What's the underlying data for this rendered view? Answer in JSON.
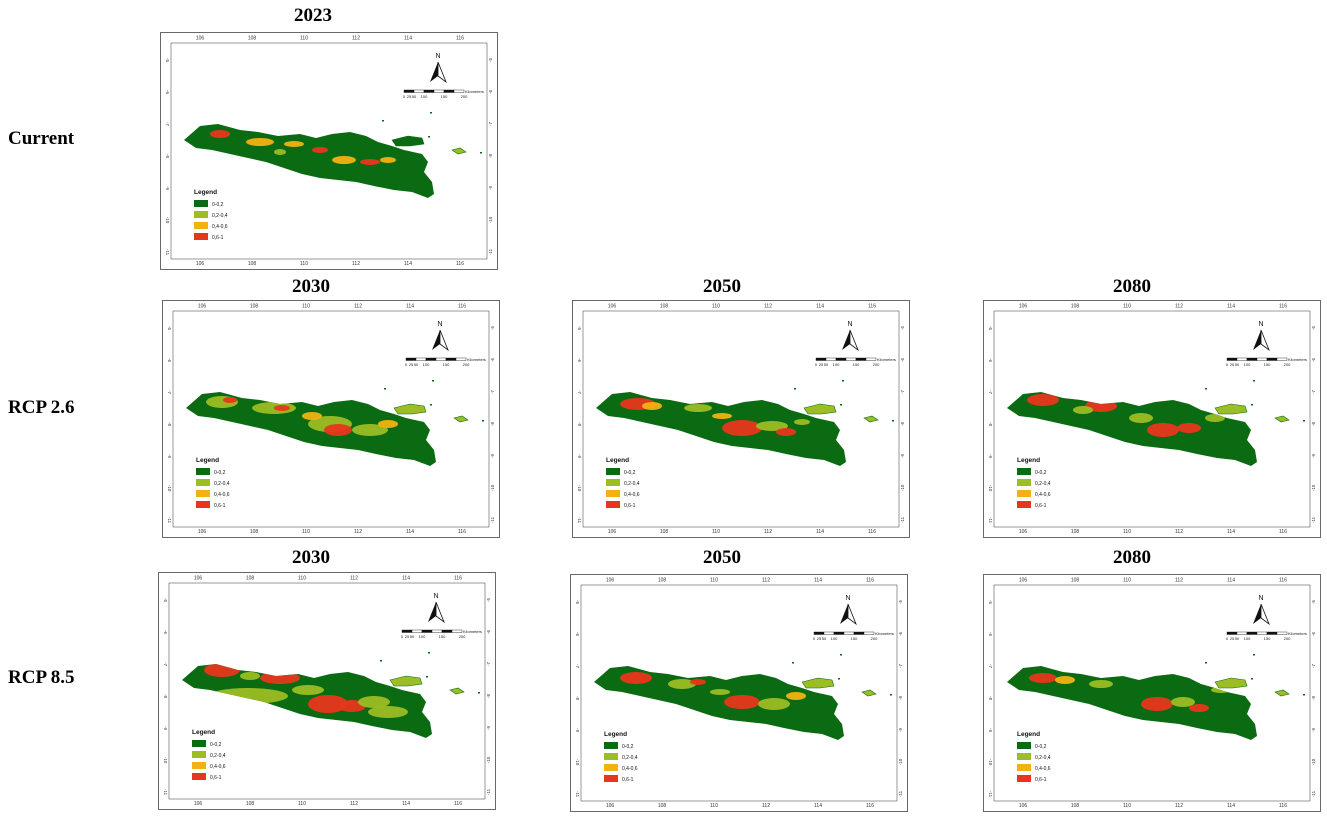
{
  "rows": [
    {
      "label": "Current"
    },
    {
      "label": "RCP 2.6"
    },
    {
      "label": "RCP 8.5"
    }
  ],
  "years": {
    "current": [
      "2023"
    ],
    "rcp26": [
      "2030",
      "2050",
      "2080"
    ],
    "rcp85": [
      "2030",
      "2050",
      "2080"
    ]
  },
  "map": {
    "lon_ticks": [
      "106",
      "108",
      "110",
      "112",
      "114",
      "116"
    ],
    "lat_ticks": [
      "-5",
      "-6",
      "-7",
      "-8",
      "-9",
      "-10",
      "-11"
    ],
    "north_label": "N",
    "scale_ticks": [
      "0",
      "25",
      "50",
      "100",
      "150",
      "200"
    ],
    "scale_unit": "Kilometers",
    "legend_title": "Legend",
    "legend": [
      {
        "label": "0-0,2",
        "color": "#0b6b12"
      },
      {
        "label": "0,2-0,4",
        "color": "#9cbd24"
      },
      {
        "label": "0,4-0,6",
        "color": "#f2b212"
      },
      {
        "label": "0,6-1",
        "color": "#e7361d"
      }
    ]
  }
}
